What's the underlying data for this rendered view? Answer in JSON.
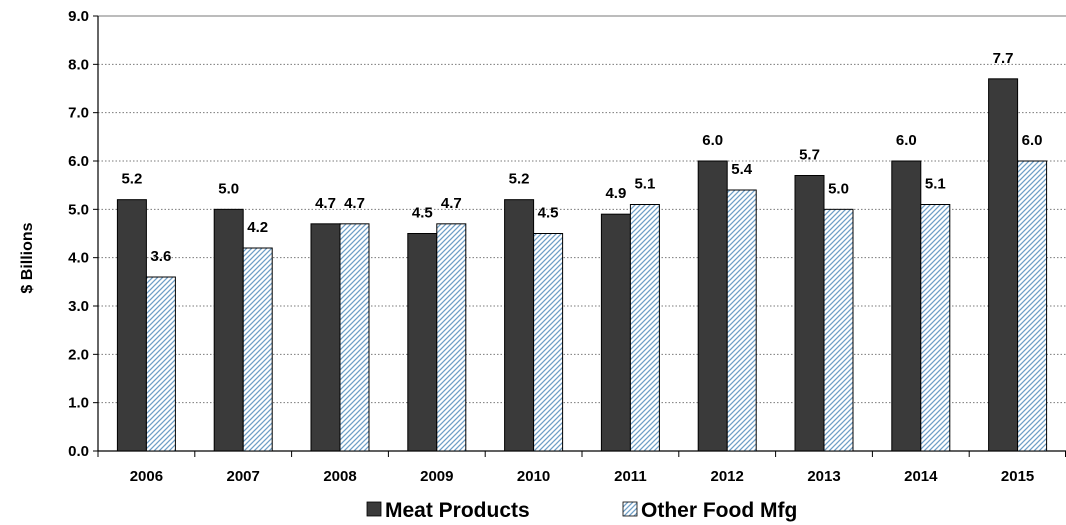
{
  "chart_data": {
    "type": "bar",
    "ylabel": "$ Billions",
    "ylim": [
      0,
      9
    ],
    "ytick_step": 1,
    "ytick_labels": [
      "0.0",
      "1.0",
      "2.0",
      "3.0",
      "4.0",
      "5.0",
      "6.0",
      "7.0",
      "8.0",
      "9.0"
    ],
    "grid": "horizontal dotted",
    "legend_position": "bottom",
    "categories": [
      "2006",
      "2007",
      "2008",
      "2009",
      "2010",
      "2011",
      "2012",
      "2013",
      "2014",
      "2015"
    ],
    "series": [
      {
        "name": "Meat Products",
        "color": "#3a3a3a",
        "pattern": "solid",
        "values": [
          5.2,
          5.0,
          4.7,
          4.5,
          5.2,
          4.9,
          6.0,
          5.7,
          6.0,
          7.7
        ],
        "labels": [
          "5.2",
          "5.0",
          "4.7",
          "4.5",
          "5.2",
          "4.9",
          "6.0",
          "5.7",
          "6.0",
          "7.7"
        ]
      },
      {
        "name": "Other Food Mfg",
        "color": "#6f9fc7",
        "pattern": "diagonal-hatch",
        "values": [
          3.6,
          4.2,
          4.7,
          4.7,
          4.5,
          5.1,
          5.4,
          5.0,
          5.1,
          6.0
        ],
        "labels": [
          "3.6",
          "4.2",
          "4.7",
          "4.7",
          "4.5",
          "5.1",
          "5.4",
          "5.0",
          "5.1",
          "6.0"
        ]
      }
    ]
  }
}
